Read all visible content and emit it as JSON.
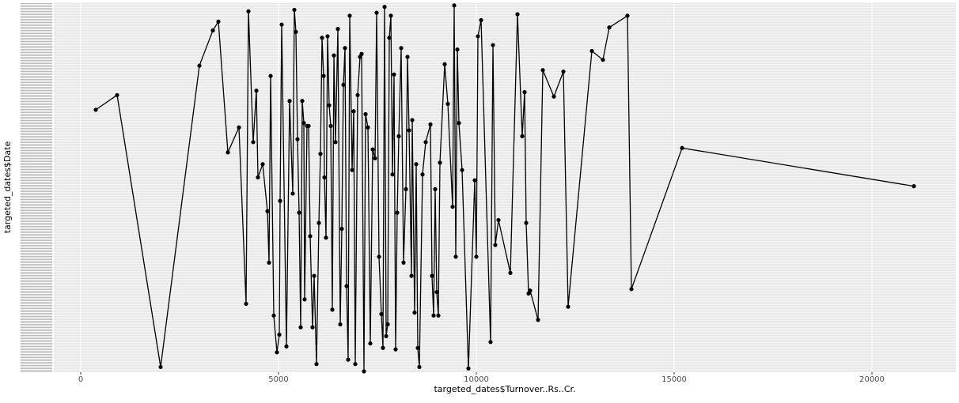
{
  "chart_data": {
    "type": "line",
    "xlabel": "targeted_dates$Turnover..Rs..Cr.",
    "ylabel": "targeted_dates$Date",
    "xlim": [
      -680,
      22120
    ],
    "xticks": [
      0,
      5000,
      10000,
      15000,
      20000
    ],
    "ylim": [
      0,
      250
    ],
    "color": "#000000",
    "grid": true,
    "x": [
      380,
      920,
      2020,
      3000,
      3340,
      3480,
      3720,
      4000,
      4180,
      4240,
      4360,
      4440,
      4480,
      4600,
      4720,
      4760,
      4800,
      4880,
      4960,
      5020,
      5040,
      5080,
      5200,
      5280,
      5360,
      5400,
      5440,
      5480,
      5520,
      5560,
      5600,
      5640,
      5660,
      5720,
      5760,
      5800,
      5860,
      5900,
      5960,
      6020,
      6060,
      6100,
      6140,
      6160,
      6200,
      6240,
      6280,
      6320,
      6360,
      6400,
      6440,
      6500,
      6560,
      6600,
      6640,
      6680,
      6720,
      6760,
      6800,
      6860,
      6900,
      6940,
      7000,
      7060,
      7100,
      7160,
      7200,
      7260,
      7320,
      7380,
      7440,
      7480,
      7540,
      7600,
      7640,
      7680,
      7720,
      7760,
      7800,
      7840,
      7880,
      7920,
      7960,
      8000,
      8040,
      8100,
      8160,
      8220,
      8260,
      8300,
      8360,
      8380,
      8440,
      8480,
      8520,
      8560,
      8640,
      8720,
      8840,
      8880,
      8920,
      8960,
      9000,
      9040,
      9080,
      9200,
      9280,
      9400,
      9440,
      9480,
      9520,
      9560,
      9640,
      9800,
      9960,
      10000,
      10040,
      10120,
      10360,
      10420,
      10480,
      10560,
      10860,
      11040,
      11160,
      11220,
      11260,
      11320,
      11360,
      11560,
      11680,
      11960,
      12200,
      12320,
      12920,
      13200,
      13360,
      13820,
      13920,
      15200,
      21060
    ],
    "values": [
      178,
      188,
      3,
      208,
      232,
      238,
      149,
      166,
      46,
      245,
      156,
      191,
      132,
      141,
      109,
      74,
      201,
      38,
      13,
      25,
      116,
      236,
      17,
      184,
      121,
      246,
      231,
      158,
      108,
      30,
      184,
      169,
      49,
      167,
      167,
      92,
      30,
      65,
      5,
      101,
      148,
      227,
      201,
      132,
      91,
      228,
      181,
      167,
      42,
      215,
      156,
      233,
      32,
      97,
      195,
      220,
      58,
      8,
      242,
      137,
      177,
      5,
      188,
      214,
      216,
      0,
      175,
      166,
      19,
      151,
      145,
      244,
      78,
      39,
      16,
      248,
      24,
      32,
      227,
      242,
      134,
      202,
      15,
      108,
      160,
      220,
      74,
      124,
      214,
      164,
      65,
      171,
      40,
      141,
      16,
      3,
      134,
      156,
      168,
      65,
      38,
      124,
      54,
      38,
      142,
      209,
      182,
      112,
      249,
      78,
      219,
      169,
      137,
      2,
      130,
      78,
      228,
      239,
      20,
      222,
      86,
      103,
      67,
      243,
      160,
      190,
      101,
      53,
      55,
      35,
      205,
      187,
      204,
      44,
      218,
      212,
      234,
      242,
      56,
      152,
      126
    ]
  }
}
